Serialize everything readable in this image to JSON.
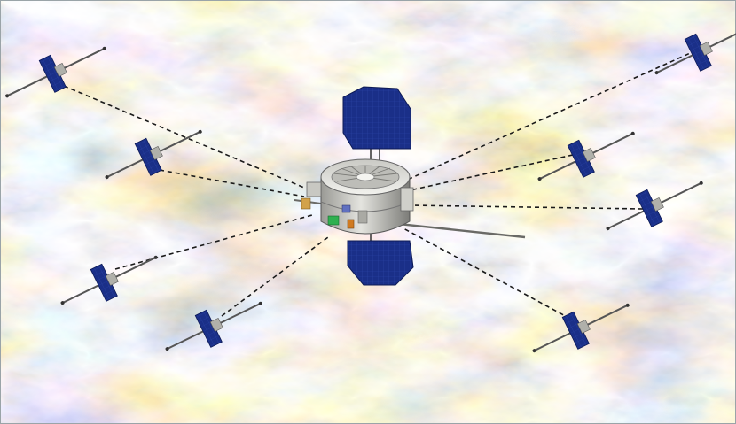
{
  "scene": {
    "kind": "illustration",
    "subject": "constellation-mothership-with-daughter-probes",
    "colors": {
      "background_base": "#d8e4e0",
      "turbulence_cyan": "#7fd0e0",
      "turbulence_teal": "#4fa9b8",
      "turbulence_blue": "#5a72b8",
      "turbulence_orange": "#e0a27a",
      "turbulence_tan": "#e8cf9a",
      "turbulence_purple": "#8a7ab4",
      "solar_panel": "#1a2f88",
      "solar_panel_grid": "#3048a8",
      "hull_light": "#d6d6d2",
      "hull_dark": "#8c8c88",
      "tether": "#222222",
      "boom": "#555555"
    },
    "probe_count": 8,
    "link_count": 8
  }
}
